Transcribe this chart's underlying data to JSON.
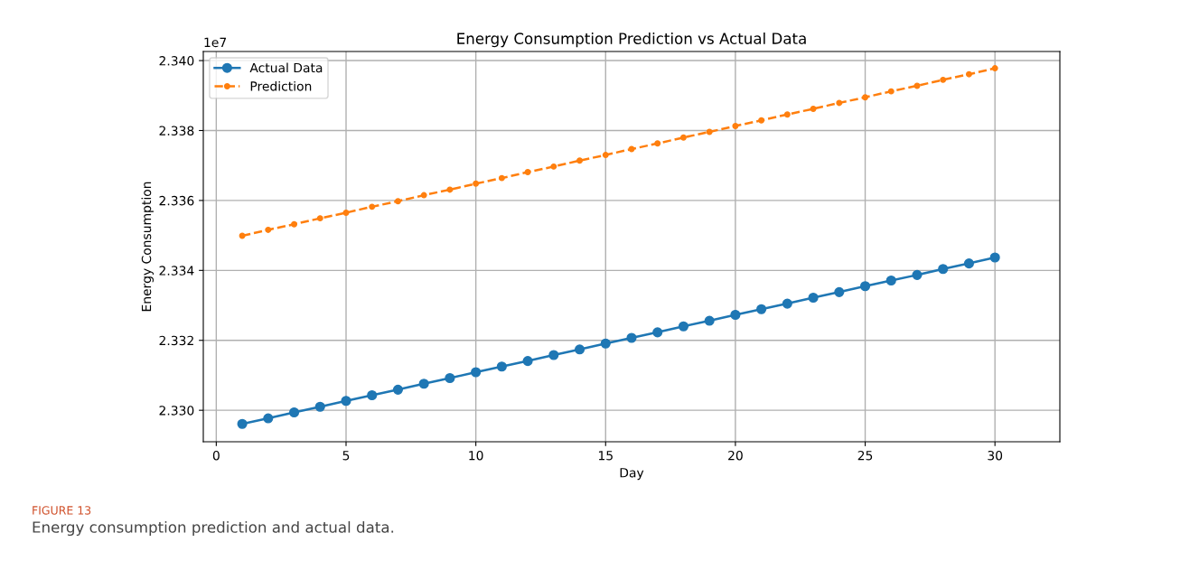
{
  "chart_data": {
    "type": "line",
    "title": "Energy Consumption Prediction vs Actual Data",
    "xlabel": "Day",
    "ylabel": "Energy Consumption",
    "x": [
      1,
      2,
      3,
      4,
      5,
      6,
      7,
      8,
      9,
      10,
      11,
      12,
      13,
      14,
      15,
      16,
      17,
      18,
      19,
      20,
      21,
      22,
      23,
      24,
      25,
      26,
      27,
      28,
      29,
      30
    ],
    "series": [
      {
        "name": "Actual Data",
        "color": "#1f77b4",
        "marker": "circle",
        "line_style": "solid",
        "values": [
          2.32961,
          2.32977,
          2.32994,
          2.3301,
          2.33027,
          2.33043,
          2.33059,
          2.33076,
          2.33092,
          2.33109,
          2.33125,
          2.33141,
          2.33158,
          2.33174,
          2.33191,
          2.33207,
          2.33223,
          2.3324,
          2.33256,
          2.33273,
          2.33289,
          2.33305,
          2.33322,
          2.33338,
          2.33355,
          2.33371,
          2.33387,
          2.33404,
          2.3342,
          2.33437
        ]
      },
      {
        "name": "Prediction",
        "color": "#ff7f0e",
        "marker": "circle",
        "line_style": "dashed",
        "values": [
          2.33499,
          2.33516,
          2.33532,
          2.33549,
          2.33565,
          2.33582,
          2.33598,
          2.33615,
          2.33631,
          2.33648,
          2.33664,
          2.33681,
          2.33697,
          2.33714,
          2.3373,
          2.33747,
          2.33763,
          2.3378,
          2.33796,
          2.33813,
          2.33829,
          2.33846,
          2.33862,
          2.33879,
          2.33895,
          2.33912,
          2.33928,
          2.33945,
          2.33961,
          2.33978
        ]
      }
    ],
    "xlim": [
      -0.5,
      32.5
    ],
    "xticks": [
      0,
      5,
      10,
      15,
      20,
      25,
      30
    ],
    "ylim": [
      2.3291,
      2.34026
    ],
    "yticks": [
      {
        "value": 2.33,
        "label": "2.330"
      },
      {
        "value": 2.332,
        "label": "2.332"
      },
      {
        "value": 2.334,
        "label": "2.334"
      },
      {
        "value": 2.336,
        "label": "2.336"
      },
      {
        "value": 2.338,
        "label": "2.338"
      },
      {
        "value": 2.34,
        "label": "2.340"
      }
    ],
    "grid": true,
    "legend": "top left",
    "annotations": [
      "1e7",
      "FIGURE 13",
      "Energy consumption prediction and actual data."
    ]
  }
}
